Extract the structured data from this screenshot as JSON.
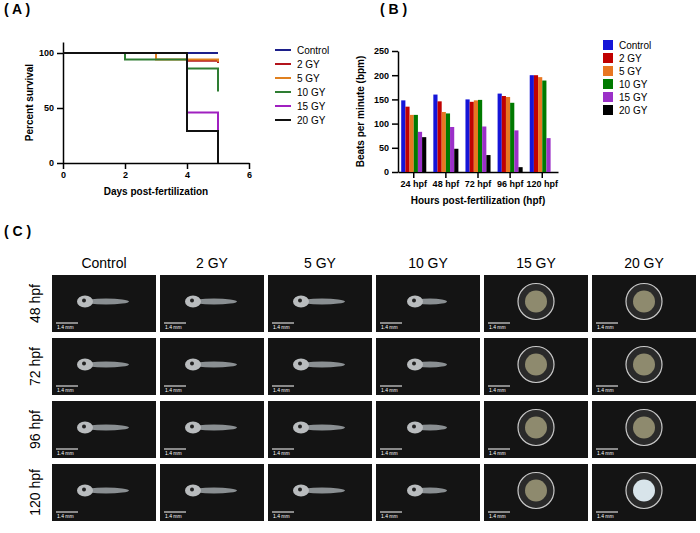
{
  "chart_data": [
    {
      "type": "line",
      "panel": "( A )",
      "x_label": "Days post-fertilization",
      "y_label": "Percent survival",
      "x": [
        0,
        1,
        2,
        3,
        4,
        5
      ],
      "series": [
        {
          "name": "Control",
          "color": "#1c1f8a",
          "values": [
            100,
            100,
            100,
            100,
            100,
            100
          ]
        },
        {
          "name": "2 GY",
          "color": "#b3141c",
          "values": [
            100,
            100,
            100,
            100,
            93,
            91
          ]
        },
        {
          "name": "5 GY",
          "color": "#e0801f",
          "values": [
            100,
            100,
            100,
            94,
            94,
            92
          ]
        },
        {
          "name": "10 GY",
          "color": "#2e7d32",
          "values": [
            100,
            100,
            94,
            94,
            86,
            65
          ]
        },
        {
          "name": "15 GY",
          "color": "#a020c0",
          "values": [
            100,
            100,
            100,
            100,
            46,
            29
          ]
        },
        {
          "name": "20 GY",
          "color": "#111111",
          "values": [
            100,
            100,
            100,
            100,
            29,
            0
          ]
        }
      ],
      "xlim": [
        0,
        6
      ],
      "xticks": [
        0,
        2,
        4,
        6
      ],
      "ylim": [
        0,
        110
      ],
      "yticks": [
        0,
        50,
        100
      ],
      "line_style": "step",
      "legend": "right",
      "grid": false
    },
    {
      "type": "bar",
      "panel": "( B )",
      "x_label": "Hours post-fertilization (hpf)",
      "y_label": "Beats per minute (bpm)",
      "categories": [
        "24 hpf",
        "48 hpf",
        "72 hpf",
        "96 hpf",
        "120 hpf"
      ],
      "series": [
        {
          "name": "Control",
          "color": "#1515d8",
          "values": [
            148,
            160,
            150,
            162,
            200
          ]
        },
        {
          "name": "2 GY",
          "color": "#c00000",
          "values": [
            135,
            146,
            145,
            157,
            200
          ]
        },
        {
          "name": "5 GY",
          "color": "#e87722",
          "values": [
            118,
            124,
            148,
            155,
            196
          ]
        },
        {
          "name": "10 GY",
          "color": "#007a00",
          "values": [
            118,
            121,
            149,
            143,
            189
          ]
        },
        {
          "name": "15 GY",
          "color": "#9b30c8",
          "values": [
            83,
            93,
            94,
            86,
            70
          ]
        },
        {
          "name": "20 GY",
          "color": "#000000",
          "values": [
            72,
            48,
            35,
            10,
            0
          ]
        }
      ],
      "ylim": [
        0,
        250
      ],
      "yticks": [
        0,
        50,
        100,
        150,
        200,
        250
      ],
      "legend": "right",
      "grid": false
    }
  ],
  "image_grid": {
    "panel": "( C )",
    "columns": [
      "Control",
      "2 GY",
      "5 GY",
      "10 GY",
      "15 GY",
      "20 GY"
    ],
    "rows": [
      "48 hpf",
      "72 hpf",
      "96 hpf",
      "120 hpf"
    ],
    "scale_bar": "1.4 mm"
  }
}
